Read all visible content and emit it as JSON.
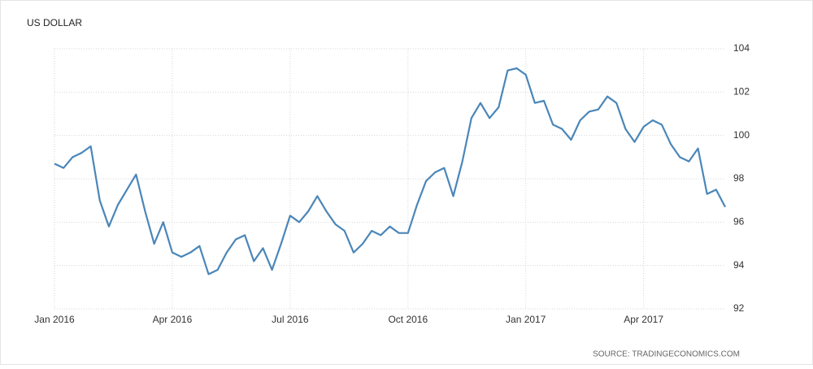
{
  "chart_data": {
    "type": "line",
    "title": "US DOLLAR",
    "source": "SOURCE: TRADINGECONOMICS.COM",
    "color": "#4a86b8",
    "grid": true,
    "y_axis_side": "right",
    "categories": [
      "Jan 2016",
      null,
      null,
      null,
      null,
      null,
      null,
      null,
      null,
      null,
      null,
      null,
      null,
      "Apr 2016",
      null,
      null,
      null,
      null,
      null,
      null,
      null,
      null,
      null,
      null,
      null,
      null,
      "Jul 2016",
      null,
      null,
      null,
      null,
      null,
      null,
      null,
      null,
      null,
      null,
      null,
      null,
      "Oct 2016",
      null,
      null,
      null,
      null,
      null,
      null,
      null,
      null,
      null,
      null,
      null,
      null,
      "Jan 2017",
      null,
      null,
      null,
      null,
      null,
      null,
      null,
      null,
      null,
      null,
      null,
      null,
      "Apr 2017",
      null,
      null,
      null,
      null,
      null,
      null,
      null,
      null,
      null
    ],
    "values": [
      98.7,
      98.5,
      99.0,
      99.2,
      99.5,
      97.0,
      95.8,
      96.8,
      97.5,
      98.2,
      96.5,
      95.0,
      96.0,
      94.6,
      94.4,
      94.6,
      94.9,
      93.6,
      93.8,
      94.6,
      95.2,
      95.4,
      94.2,
      94.8,
      93.8,
      95.0,
      96.3,
      96.0,
      96.5,
      97.2,
      96.5,
      95.9,
      95.6,
      94.6,
      95.0,
      95.6,
      95.4,
      95.8,
      95.5,
      95.5,
      96.8,
      97.9,
      98.3,
      98.5,
      97.2,
      98.8,
      100.8,
      101.5,
      100.8,
      101.3,
      103.0,
      103.1,
      102.8,
      101.5,
      101.6,
      100.5,
      100.3,
      99.8,
      100.7,
      101.1,
      101.2,
      101.8,
      101.5,
      100.3,
      99.7,
      100.4,
      100.7,
      100.5,
      99.6,
      99.0,
      98.8,
      99.4,
      97.3,
      97.5,
      96.7
    ],
    "ylim": [
      92,
      104
    ],
    "yticks": [
      92,
      94,
      96,
      98,
      100,
      102,
      104
    ]
  }
}
